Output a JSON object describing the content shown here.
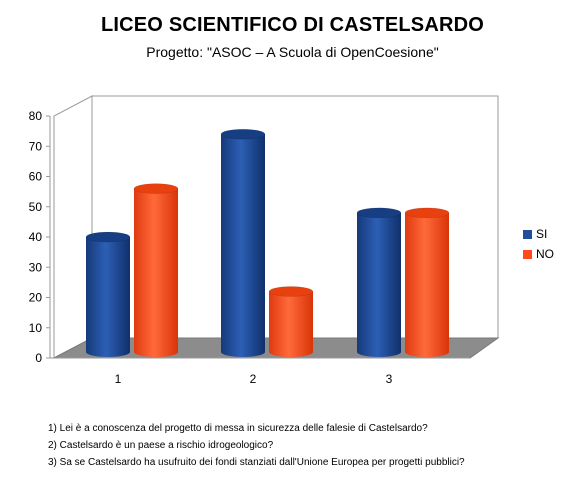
{
  "header": {
    "title": "LICEO SCIENTIFICO DI CASTELSARDO",
    "subtitle": "Progetto: \"ASOC – A Scuola di OpenCoesione\""
  },
  "chart_data": {
    "type": "bar",
    "categories": [
      "1",
      "2",
      "3"
    ],
    "series": [
      {
        "name": "SI",
        "color": "#1f4e9c",
        "values": [
          38,
          72,
          46
        ]
      },
      {
        "name": "NO",
        "color": "#ff4a1c",
        "values": [
          54,
          20,
          46
        ]
      }
    ],
    "ylim": [
      0,
      80
    ],
    "yticks": [
      "0",
      "10",
      "20",
      "30",
      "40",
      "50",
      "60",
      "70",
      "80"
    ],
    "grid": false,
    "legend": "right",
    "style": "3d-cylinder"
  },
  "notes": [
    "1) Lei è a conoscenza del progetto di messa in sicurezza delle falesie di Castelsardo?",
    "2) Castelsardo è un paese a rischio idrogeologico?",
    "3) Sa se Castelsardo ha usufruito dei fondi stanziati dall'Unione Europea per progetti pubblici?"
  ]
}
